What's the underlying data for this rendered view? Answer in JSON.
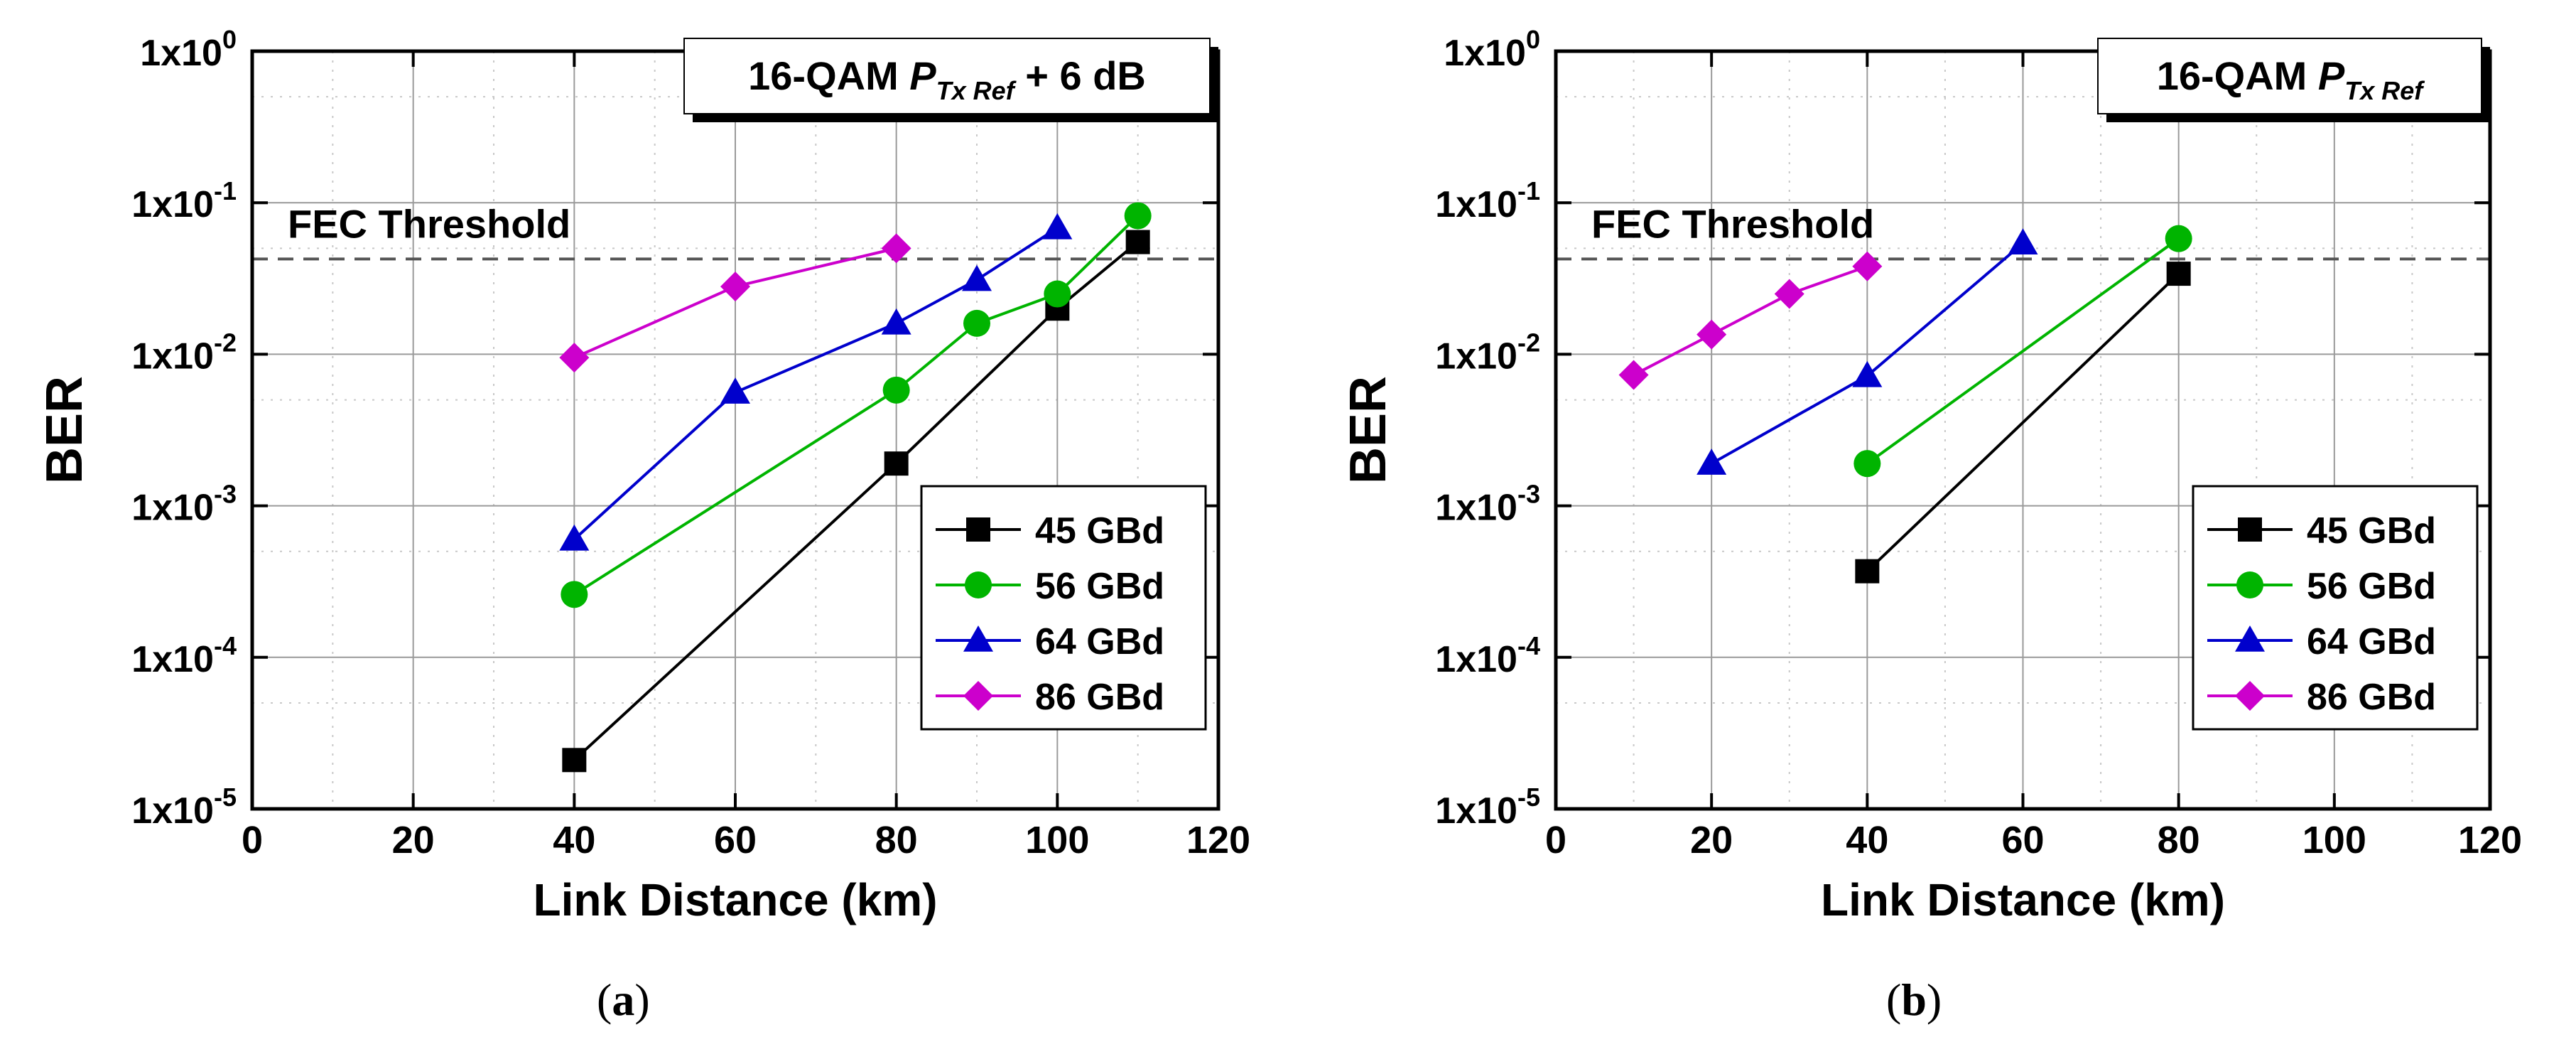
{
  "figure": {
    "panel_a_label": "a",
    "panel_b_label": "b"
  },
  "chart_data": [
    {
      "type": "line",
      "panel": "a",
      "title_main": "16-QAM ",
      "title_italic": "P",
      "title_sub": "Tx Ref",
      "title_suffix": " + 6 dB",
      "xlabel": "Link Distance (km)",
      "ylabel": "BER",
      "xlim": [
        0,
        120
      ],
      "xticks": [
        0,
        20,
        40,
        60,
        80,
        100,
        120
      ],
      "ylim_log10": [
        -5,
        0
      ],
      "yticks_base": "1x10",
      "yticks_exp": [
        "0",
        "-1",
        "-2",
        "-3",
        "-4",
        "-5"
      ],
      "threshold": {
        "label": "FEC Threshold",
        "value": 0.0425
      },
      "grid": true,
      "legend_position": "lower-right",
      "series": [
        {
          "name": "45 GBd",
          "color": "#000000",
          "marker": "square",
          "x": [
            40,
            80,
            100,
            110
          ],
          "y": [
            2.1e-05,
            0.0019,
            0.02,
            0.055
          ]
        },
        {
          "name": "56 GBd",
          "color": "#00b400",
          "marker": "circle",
          "x": [
            40,
            80,
            90,
            100,
            110
          ],
          "y": [
            0.00026,
            0.0058,
            0.016,
            0.025,
            0.082
          ]
        },
        {
          "name": "64 GBd",
          "color": "#0000cc",
          "marker": "triangle",
          "x": [
            40,
            60,
            80,
            90,
            100
          ],
          "y": [
            0.0006,
            0.0056,
            0.016,
            0.031,
            0.068
          ]
        },
        {
          "name": "86 GBd",
          "color": "#cc00cc",
          "marker": "diamond",
          "x": [
            40,
            60,
            80
          ],
          "y": [
            0.0095,
            0.028,
            0.05
          ]
        }
      ]
    },
    {
      "type": "line",
      "panel": "b",
      "title_main": "16-QAM ",
      "title_italic": "P",
      "title_sub": "Tx Ref",
      "title_suffix": "",
      "xlabel": "Link Distance (km)",
      "ylabel": "BER",
      "xlim": [
        0,
        120
      ],
      "xticks": [
        0,
        20,
        40,
        60,
        80,
        100,
        120
      ],
      "ylim_log10": [
        -5,
        0
      ],
      "yticks_base": "1x10",
      "yticks_exp": [
        "0",
        "-1",
        "-2",
        "-3",
        "-4",
        "-5"
      ],
      "threshold": {
        "label": "FEC Threshold",
        "value": 0.0425
      },
      "grid": true,
      "legend_position": "lower-right",
      "series": [
        {
          "name": "45 GBd",
          "color": "#000000",
          "marker": "square",
          "x": [
            40,
            80
          ],
          "y": [
            0.00037,
            0.034
          ]
        },
        {
          "name": "56 GBd",
          "color": "#00b400",
          "marker": "circle",
          "x": [
            40,
            80
          ],
          "y": [
            0.0019,
            0.058
          ]
        },
        {
          "name": "64 GBd",
          "color": "#0000cc",
          "marker": "triangle",
          "x": [
            20,
            40,
            60
          ],
          "y": [
            0.0019,
            0.0072,
            0.054
          ]
        },
        {
          "name": "86 GBd",
          "color": "#cc00cc",
          "marker": "diamond",
          "x": [
            10,
            20,
            30,
            40
          ],
          "y": [
            0.0073,
            0.0135,
            0.025,
            0.038
          ]
        }
      ]
    }
  ]
}
